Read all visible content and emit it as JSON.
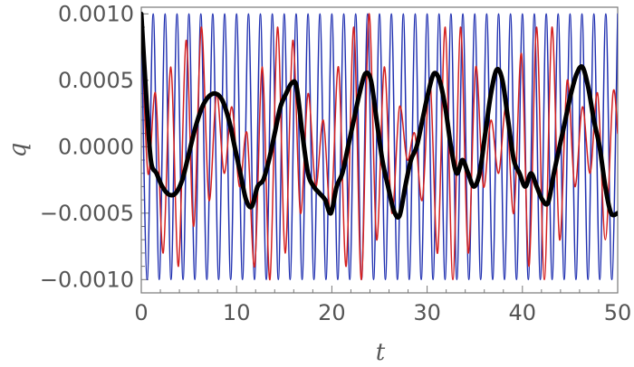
{
  "chart_data": {
    "type": "line",
    "title": "",
    "xlabel": "t",
    "ylabel": "q",
    "xlim": [
      0,
      50
    ],
    "ylim": [
      -0.0011,
      0.00105
    ],
    "x_ticks": [
      0,
      10,
      20,
      30,
      40,
      50
    ],
    "x_tick_labels": [
      "0",
      "10",
      "20",
      "30",
      "40",
      "50"
    ],
    "y_ticks": [
      -0.001,
      -0.0005,
      0,
      0.0005,
      0.001
    ],
    "y_tick_labels": [
      "−0.0010",
      "−0.0005",
      "0.0000",
      "0.0005",
      "0.0010"
    ],
    "grid": false,
    "legend": "none",
    "series": [
      {
        "color": "#1f2fb0",
        "stroke_width": 1.5,
        "x": [
          0,
          0.62,
          1.25,
          1.88,
          2.5,
          3.12,
          3.75,
          4.38,
          5,
          5.62,
          6.25,
          6.88,
          7.5,
          8.12,
          8.75,
          9.38,
          10,
          10.62,
          11.25,
          11.88,
          12.5,
          13.12,
          13.75,
          14.38,
          15,
          15.62,
          16.25,
          16.88,
          17.5,
          18.12,
          18.75,
          19.38,
          20,
          20.62,
          21.25,
          21.88,
          22.5,
          23.12,
          23.75,
          24.38,
          25,
          25.62,
          26.25,
          26.88,
          27.5,
          28.12,
          28.75,
          29.38,
          30,
          30.62,
          31.25,
          31.88,
          32.5,
          33.12,
          33.75,
          34.38,
          35,
          35.62,
          36.25,
          36.88,
          37.5,
          38.12,
          38.75,
          39.38,
          40,
          40.62,
          41.25,
          41.88,
          42.5,
          43.12,
          43.75,
          44.38,
          45,
          45.62,
          46.25,
          46.88,
          47.5,
          48.12,
          48.75,
          49.38,
          50
        ],
        "y": [
          0.001,
          -0.001,
          0.001,
          -0.001,
          0.001,
          -0.001,
          0.001,
          -0.001,
          0.001,
          -0.001,
          0.001,
          -0.001,
          0.001,
          -0.001,
          0.001,
          -0.001,
          0.001,
          -0.001,
          0.001,
          -0.001,
          0.001,
          -0.001,
          0.001,
          -0.001,
          0.001,
          -0.001,
          0.001,
          -0.001,
          0.001,
          -0.001,
          0.001,
          -0.001,
          0.001,
          -0.001,
          0.001,
          -0.001,
          0.001,
          -0.001,
          0.001,
          -0.001,
          0.001,
          -0.001,
          0.001,
          -0.001,
          0.001,
          -0.001,
          0.001,
          -0.001,
          0.001,
          -0.001,
          0.001,
          -0.001,
          0.001,
          -0.001,
          0.001,
          -0.001,
          0.001,
          -0.001,
          0.001,
          -0.001,
          0.001,
          -0.001,
          0.001,
          -0.001,
          0.001,
          -0.001,
          0.001,
          -0.001,
          0.001,
          -0.001,
          0.001,
          -0.001,
          0.001,
          -0.001,
          0.001,
          -0.001,
          0.001,
          -0.001,
          0.001,
          -0.001,
          0.001
        ]
      },
      {
        "color": "#d42020",
        "stroke_width": 1.5,
        "x": [
          0,
          0.7,
          1.5,
          2.3,
          3.1,
          3.9,
          4.7,
          5.5,
          6.3,
          7.1,
          7.9,
          8.7,
          9.5,
          10.3,
          11.1,
          11.9,
          12.7,
          13.5,
          14.3,
          15.1,
          15.9,
          16.7,
          17.5,
          18.3,
          19.1,
          19.9,
          20.7,
          21.5,
          22.3,
          23.1,
          23.9,
          24.7,
          25.5,
          26.3,
          27.1,
          27.9,
          28.7,
          29.5,
          30.3,
          31.1,
          31.9,
          32.7,
          33.5,
          34.3,
          35.1,
          35.9,
          36.7,
          37.5,
          38.3,
          39.1,
          39.9,
          40.7,
          41.5,
          42.3,
          43.1,
          43.9,
          44.7,
          45.5,
          46.3,
          47.1,
          47.9,
          48.7,
          49.5,
          50
        ],
        "y": [
          0.001,
          -0.0002,
          0.0004,
          -0.0008,
          0.0006,
          -0.0009,
          0.0008,
          -0.0006,
          0.0009,
          -0.0004,
          0.0004,
          -0.0002,
          0.0003,
          -0.0003,
          0.0001,
          -0.0009,
          0.0006,
          -0.001,
          0.0009,
          -0.0008,
          0.0008,
          -0.0005,
          0.0004,
          -0.0003,
          0.0002,
          -0.0005,
          0.0006,
          -0.0009,
          0.0009,
          -0.001,
          0.001,
          -0.0007,
          0.0006,
          -0.0005,
          0.0003,
          -0.0001,
          0.0001,
          -0.0004,
          0.0005,
          -0.0008,
          0.0009,
          -0.001,
          0.0009,
          -0.0008,
          0.0006,
          -0.0003,
          0.0002,
          -0.0002,
          0.0003,
          -0.0005,
          0.0007,
          -0.0009,
          0.0009,
          -0.001,
          0.0009,
          -0.0007,
          0.0005,
          -0.0003,
          0.0003,
          -0.0002,
          0.0004,
          -0.0007,
          0.0004,
          0.0001
        ]
      },
      {
        "color": "#000000",
        "stroke_width": 5,
        "x": [
          0,
          0.5,
          1,
          1.6,
          2.2,
          2.9,
          3.6,
          4.3,
          5,
          5.7,
          6.4,
          7.1,
          7.8,
          8.5,
          9.2,
          9.8,
          10.4,
          11,
          11.6,
          12.2,
          12.8,
          13.4,
          14,
          14.6,
          15.2,
          15.8,
          16.3,
          16.9,
          17.5,
          18.1,
          18.7,
          19.3,
          19.9,
          20.5,
          21.1,
          21.7,
          22.3,
          22.9,
          23.5,
          24.1,
          24.7,
          25.3,
          25.9,
          26.5,
          27.1,
          27.7,
          28.3,
          28.9,
          29.5,
          30.1,
          30.7,
          31.3,
          31.9,
          32.5,
          33.1,
          33.7,
          34.3,
          34.9,
          35.5,
          36.1,
          36.7,
          37.3,
          37.9,
          38.5,
          39.1,
          39.7,
          40.3,
          40.9,
          41.5,
          42.1,
          42.7,
          43.3,
          43.9,
          44.5,
          45.1,
          45.7,
          46.3,
          46.9,
          47.5,
          48.1,
          48.7,
          49.3,
          50
        ],
        "y": [
          0.001,
          0.0004,
          -0.0001,
          -0.0002,
          -0.0003,
          -0.00036,
          -0.00035,
          -0.00025,
          -5e-05,
          0.00015,
          0.0003,
          0.00038,
          0.0004,
          0.00035,
          0.0002,
          0.0,
          -0.0002,
          -0.0004,
          -0.00045,
          -0.0003,
          -0.00025,
          -0.0001,
          0.0001,
          0.0003,
          0.0004,
          0.00048,
          0.00045,
          0.0001,
          -0.0002,
          -0.0003,
          -0.00035,
          -0.0004,
          -0.0005,
          -0.0003,
          -0.0002,
          0.0,
          0.0002,
          0.0004,
          0.00055,
          0.0005,
          0.0002,
          -0.0001,
          -0.0003,
          -0.00048,
          -0.00052,
          -0.0003,
          -0.0001,
          0.0,
          0.0002,
          0.0004,
          0.00055,
          0.0005,
          0.0003,
          0.0,
          -0.0002,
          -0.0001,
          -0.0002,
          -0.0003,
          -0.0002,
          0.0001,
          0.0004,
          0.00058,
          0.0005,
          0.0002,
          -0.0001,
          -0.0002,
          -0.0003,
          -0.0002,
          -0.0003,
          -0.0004,
          -0.00042,
          -0.0002,
          0.0,
          0.0002,
          0.0004,
          0.00055,
          0.0006,
          0.00045,
          0.0002,
          0.0,
          -0.0003,
          -0.0005,
          -0.0005
        ]
      }
    ]
  }
}
